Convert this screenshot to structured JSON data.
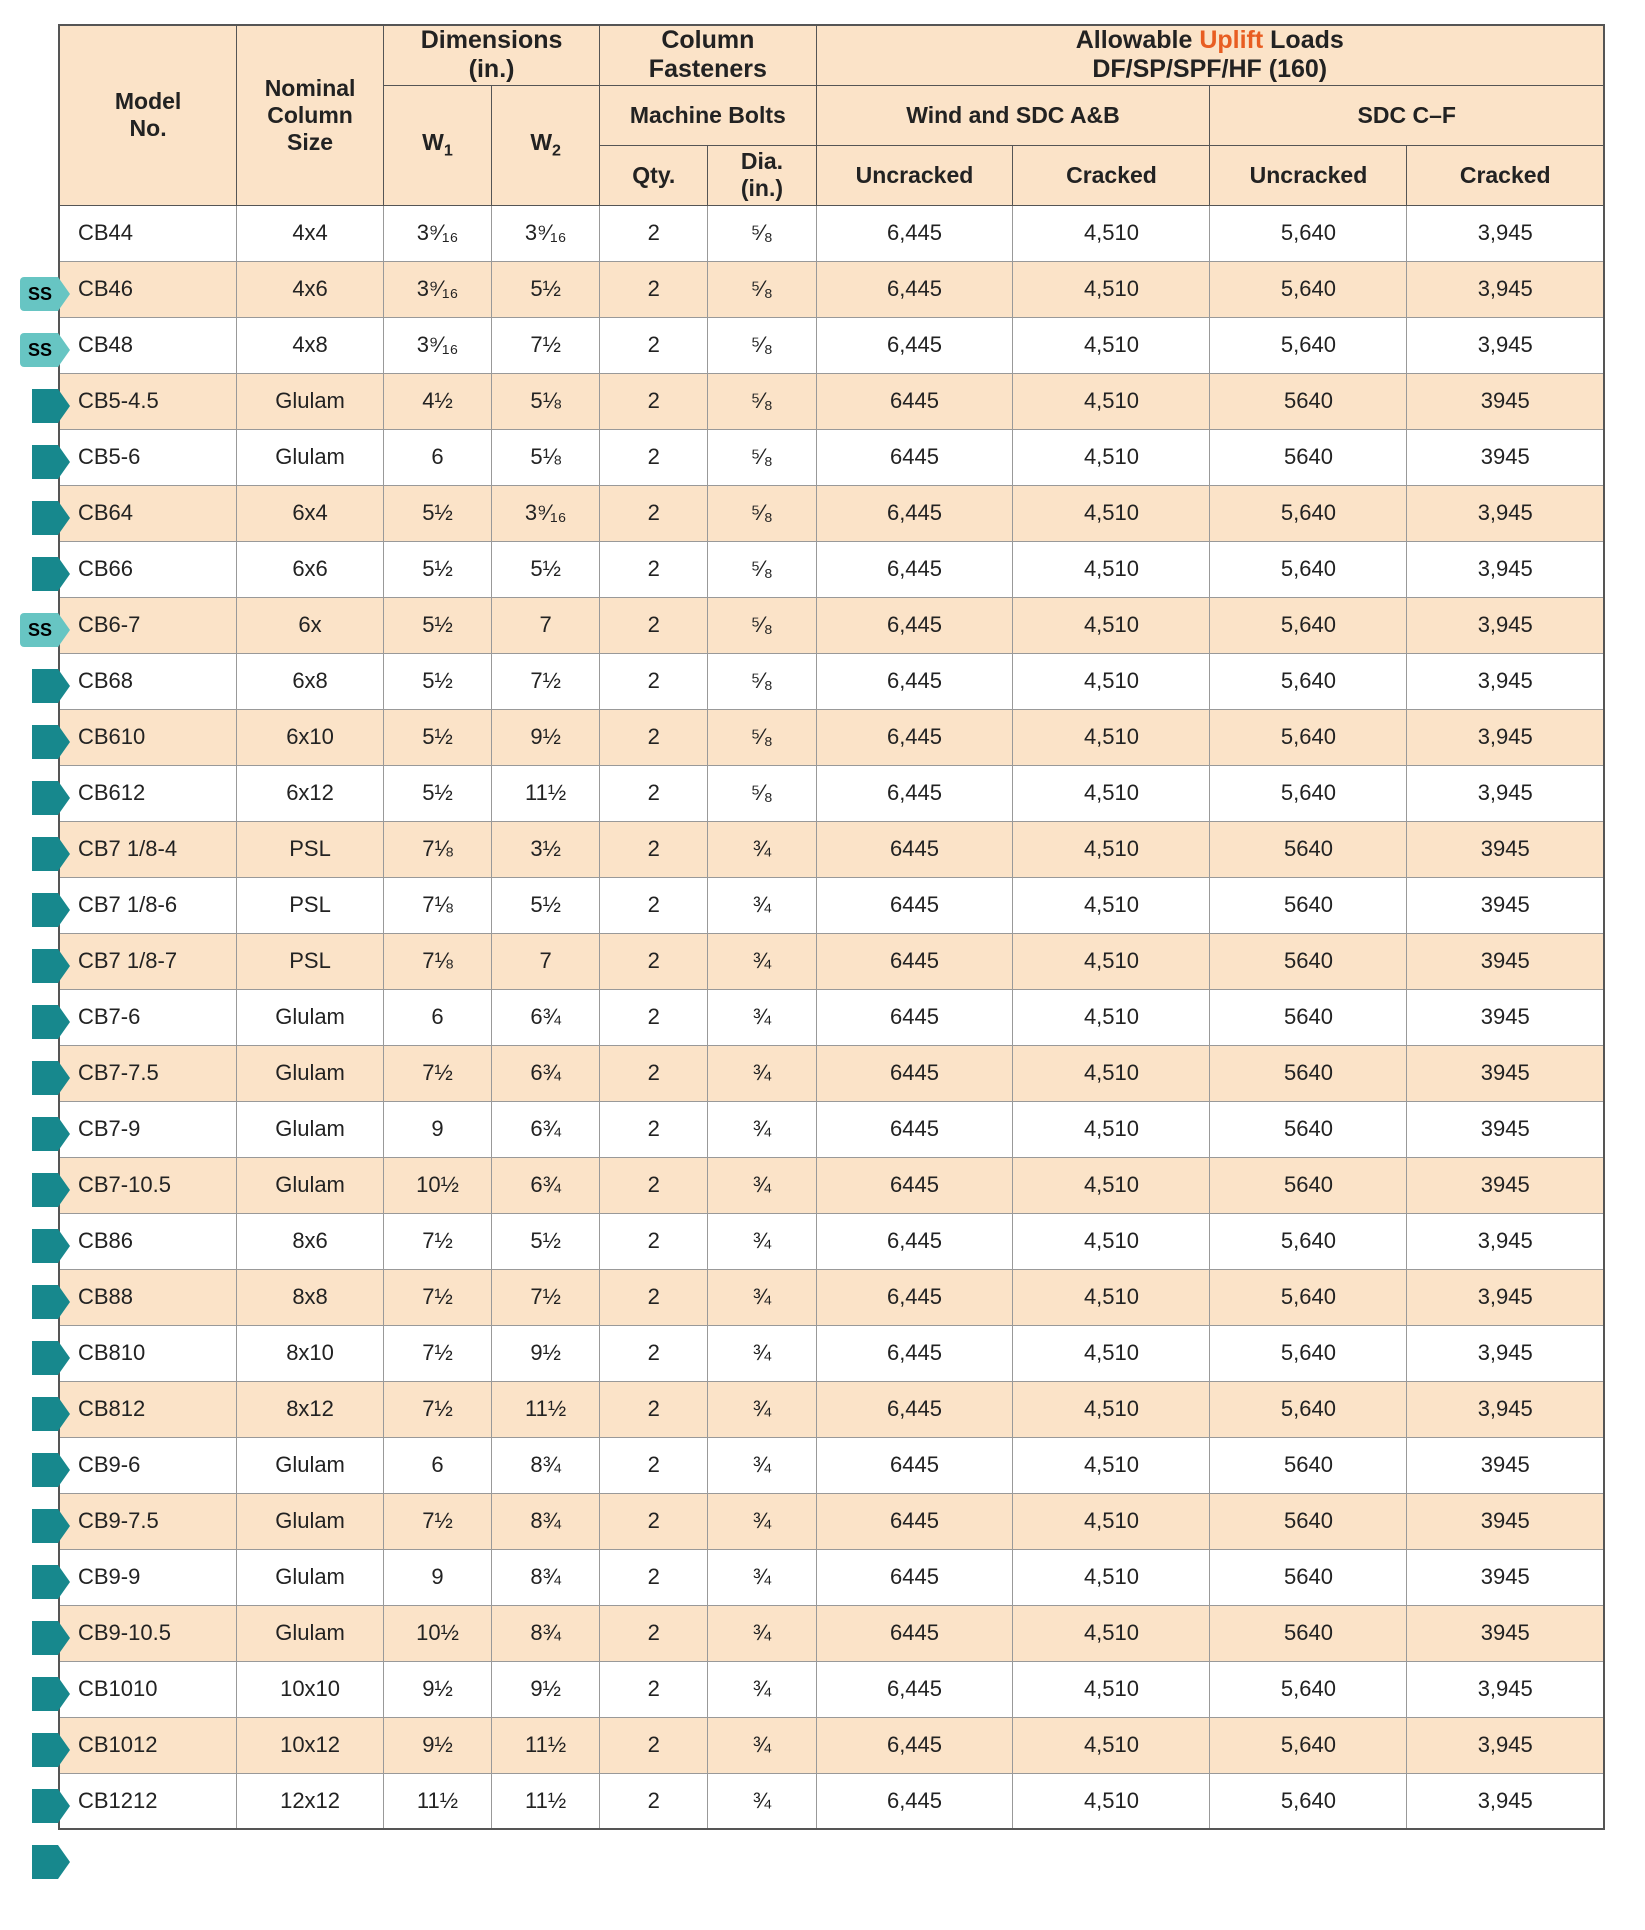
{
  "header": {
    "model": "Model\nNo.",
    "nominal": "Nominal\nColumn\nSize",
    "dimensions_title": "Dimensions\n(in.)",
    "w1": "W",
    "w1_sub": "1",
    "w2": "W",
    "w2_sub": "2",
    "fasteners_title": "Column\nFasteners",
    "machine_bolts": "Machine Bolts",
    "qty": "Qty.",
    "dia": "Dia.\n(in.)",
    "allowable_pre": "Allowable ",
    "allowable_uplift": "Uplift",
    "allowable_post": " Loads",
    "allowable_sub": "DF/SP/SPF/HF (160)",
    "wind": "Wind and SDC A&B",
    "sdc": "SDC C–F",
    "uncracked": "Uncracked",
    "cracked": "Cracked"
  },
  "colors": {
    "header_bg": "#fbe3c8",
    "row_even": "#fbe3c8",
    "row_odd": "#ffffff",
    "border_dark": "#555555",
    "border_light": "#999999",
    "uplift": "#e85d22",
    "badge": "#17888d",
    "ss_bg": "#67c5c3"
  },
  "rows": [
    {
      "badge": "ss",
      "model": "CB44",
      "size": "4x4",
      "w1": "3⁹⁄₁₆",
      "w2": "3⁹⁄₁₆",
      "qty": "2",
      "dia": "⁵⁄₈",
      "wu": "6,445",
      "wc": "4,510",
      "su": "5,640",
      "sc": "3,945"
    },
    {
      "badge": "ss",
      "model": "CB46",
      "size": "4x6",
      "w1": "3⁹⁄₁₆",
      "w2": "5½",
      "qty": "2",
      "dia": "⁵⁄₈",
      "wu": "6,445",
      "wc": "4,510",
      "su": "5,640",
      "sc": "3,945"
    },
    {
      "badge": "arrow",
      "model": "CB48",
      "size": "4x8",
      "w1": "3⁹⁄₁₆",
      "w2": "7½",
      "qty": "2",
      "dia": "⁵⁄₈",
      "wu": "6,445",
      "wc": "4,510",
      "su": "5,640",
      "sc": "3,945"
    },
    {
      "badge": "arrow",
      "model": "CB5-4.5",
      "size": "Glulam",
      "w1": "4½",
      "w2": "5⅛",
      "qty": "2",
      "dia": "⁵⁄₈",
      "wu": "6445",
      "wc": "4,510",
      "su": "5640",
      "sc": "3945"
    },
    {
      "badge": "arrow",
      "model": "CB5-6",
      "size": "Glulam",
      "w1": "6",
      "w2": "5⅛",
      "qty": "2",
      "dia": "⁵⁄₈",
      "wu": "6445",
      "wc": "4,510",
      "su": "5640",
      "sc": "3945"
    },
    {
      "badge": "arrow",
      "model": "CB64",
      "size": "6x4",
      "w1": "5½",
      "w2": "3⁹⁄₁₆",
      "qty": "2",
      "dia": "⁵⁄₈",
      "wu": "6,445",
      "wc": "4,510",
      "su": "5,640",
      "sc": "3,945"
    },
    {
      "badge": "ss",
      "model": "CB66",
      "size": "6x6",
      "w1": "5½",
      "w2": "5½",
      "qty": "2",
      "dia": "⁵⁄₈",
      "wu": "6,445",
      "wc": "4,510",
      "su": "5,640",
      "sc": "3,945"
    },
    {
      "badge": "arrow",
      "model": "CB6-7",
      "size": "6x",
      "w1": "5½",
      "w2": "7",
      "qty": "2",
      "dia": "⁵⁄₈",
      "wu": "6,445",
      "wc": "4,510",
      "su": "5,640",
      "sc": "3,945"
    },
    {
      "badge": "arrow",
      "model": "CB68",
      "size": "6x8",
      "w1": "5½",
      "w2": "7½",
      "qty": "2",
      "dia": "⁵⁄₈",
      "wu": "6,445",
      "wc": "4,510",
      "su": "5,640",
      "sc": "3,945"
    },
    {
      "badge": "arrow",
      "model": "CB610",
      "size": "6x10",
      "w1": "5½",
      "w2": "9½",
      "qty": "2",
      "dia": "⁵⁄₈",
      "wu": "6,445",
      "wc": "4,510",
      "su": "5,640",
      "sc": "3,945"
    },
    {
      "badge": "arrow",
      "model": "CB612",
      "size": "6x12",
      "w1": "5½",
      "w2": "11½",
      "qty": "2",
      "dia": "⁵⁄₈",
      "wu": "6,445",
      "wc": "4,510",
      "su": "5,640",
      "sc": "3,945"
    },
    {
      "badge": "arrow",
      "model": "CB7 1/8-4",
      "size": "PSL",
      "w1": "7⅛",
      "w2": "3½",
      "qty": "2",
      "dia": "¾",
      "wu": "6445",
      "wc": "4,510",
      "su": "5640",
      "sc": "3945"
    },
    {
      "badge": "arrow",
      "model": "CB7 1/8-6",
      "size": "PSL",
      "w1": "7⅛",
      "w2": "5½",
      "qty": "2",
      "dia": "¾",
      "wu": "6445",
      "wc": "4,510",
      "su": "5640",
      "sc": "3945"
    },
    {
      "badge": "arrow",
      "model": "CB7 1/8-7",
      "size": "PSL",
      "w1": "7⅛",
      "w2": "7",
      "qty": "2",
      "dia": "¾",
      "wu": "6445",
      "wc": "4,510",
      "su": "5640",
      "sc": "3945"
    },
    {
      "badge": "arrow",
      "model": "CB7-6",
      "size": "Glulam",
      "w1": "6",
      "w2": "6¾",
      "qty": "2",
      "dia": "¾",
      "wu": "6445",
      "wc": "4,510",
      "su": "5640",
      "sc": "3945"
    },
    {
      "badge": "arrow",
      "model": "CB7-7.5",
      "size": "Glulam",
      "w1": "7½",
      "w2": "6¾",
      "qty": "2",
      "dia": "¾",
      "wu": "6445",
      "wc": "4,510",
      "su": "5640",
      "sc": "3945"
    },
    {
      "badge": "arrow",
      "model": "CB7-9",
      "size": "Glulam",
      "w1": "9",
      "w2": "6¾",
      "qty": "2",
      "dia": "¾",
      "wu": "6445",
      "wc": "4,510",
      "su": "5640",
      "sc": "3945"
    },
    {
      "badge": "arrow",
      "model": "CB7-10.5",
      "size": "Glulam",
      "w1": "10½",
      "w2": "6¾",
      "qty": "2",
      "dia": "¾",
      "wu": "6445",
      "wc": "4,510",
      "su": "5640",
      "sc": "3945"
    },
    {
      "badge": "arrow",
      "model": "CB86",
      "size": "8x6",
      "w1": "7½",
      "w2": "5½",
      "qty": "2",
      "dia": "¾",
      "wu": "6,445",
      "wc": "4,510",
      "su": "5,640",
      "sc": "3,945"
    },
    {
      "badge": "arrow",
      "model": "CB88",
      "size": "8x8",
      "w1": "7½",
      "w2": "7½",
      "qty": "2",
      "dia": "¾",
      "wu": "6,445",
      "wc": "4,510",
      "su": "5,640",
      "sc": "3,945"
    },
    {
      "badge": "arrow",
      "model": "CB810",
      "size": "8x10",
      "w1": "7½",
      "w2": "9½",
      "qty": "2",
      "dia": "¾",
      "wu": "6,445",
      "wc": "4,510",
      "su": "5,640",
      "sc": "3,945"
    },
    {
      "badge": "arrow",
      "model": "CB812",
      "size": "8x12",
      "w1": "7½",
      "w2": "11½",
      "qty": "2",
      "dia": "¾",
      "wu": "6,445",
      "wc": "4,510",
      "su": "5,640",
      "sc": "3,945"
    },
    {
      "badge": "arrow",
      "model": "CB9-6",
      "size": "Glulam",
      "w1": "6",
      "w2": "8¾",
      "qty": "2",
      "dia": "¾",
      "wu": "6445",
      "wc": "4,510",
      "su": "5640",
      "sc": "3945"
    },
    {
      "badge": "arrow",
      "model": "CB9-7.5",
      "size": "Glulam",
      "w1": "7½",
      "w2": "8¾",
      "qty": "2",
      "dia": "¾",
      "wu": "6445",
      "wc": "4,510",
      "su": "5640",
      "sc": "3945"
    },
    {
      "badge": "arrow",
      "model": "CB9-9",
      "size": "Glulam",
      "w1": "9",
      "w2": "8¾",
      "qty": "2",
      "dia": "¾",
      "wu": "6445",
      "wc": "4,510",
      "su": "5640",
      "sc": "3945"
    },
    {
      "badge": "arrow",
      "model": "CB9-10.5",
      "size": "Glulam",
      "w1": "10½",
      "w2": "8¾",
      "qty": "2",
      "dia": "¾",
      "wu": "6445",
      "wc": "4,510",
      "su": "5640",
      "sc": "3945"
    },
    {
      "badge": "arrow",
      "model": "CB1010",
      "size": "10x10",
      "w1": "9½",
      "w2": "9½",
      "qty": "2",
      "dia": "¾",
      "wu": "6,445",
      "wc": "4,510",
      "su": "5,640",
      "sc": "3,945"
    },
    {
      "badge": "arrow",
      "model": "CB1012",
      "size": "10x12",
      "w1": "9½",
      "w2": "11½",
      "qty": "2",
      "dia": "¾",
      "wu": "6,445",
      "wc": "4,510",
      "su": "5,640",
      "sc": "3,945"
    },
    {
      "badge": "arrow",
      "model": "CB1212",
      "size": "12x12",
      "w1": "11½",
      "w2": "11½",
      "qty": "2",
      "dia": "¾",
      "wu": "6,445",
      "wc": "4,510",
      "su": "5,640",
      "sc": "3,945"
    }
  ],
  "ss_label": "SS"
}
